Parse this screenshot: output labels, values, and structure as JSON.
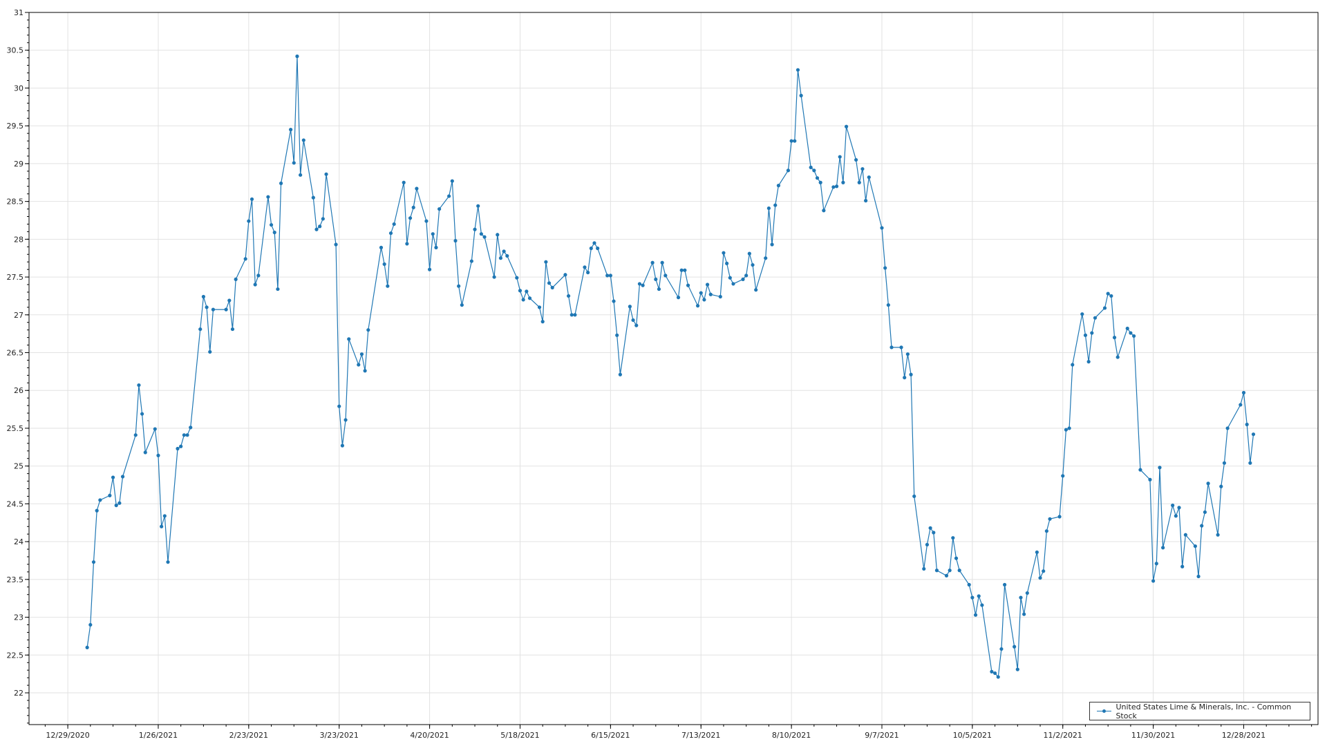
{
  "chart_data": {
    "type": "line",
    "title": "",
    "xlabel": "",
    "ylabel": "",
    "grid": true,
    "legend_position": "bottom-right",
    "xlim": [
      "12/17/2020",
      "1/20/2022"
    ],
    "ylim": [
      21.58,
      31
    ],
    "x_ticks": [
      "12/29/2020",
      "1/26/2021",
      "2/23/2021",
      "3/23/2021",
      "4/20/2021",
      "5/18/2021",
      "6/15/2021",
      "7/13/2021",
      "8/10/2021",
      "9/7/2021",
      "10/5/2021",
      "11/2/2021",
      "11/30/2021",
      "12/28/2021"
    ],
    "y_ticks": [
      "22",
      "22.5",
      "23",
      "23.5",
      "24",
      "24.5",
      "25",
      "25.5",
      "26",
      "26.5",
      "27",
      "27.5",
      "28",
      "28.5",
      "29",
      "29.5",
      "30",
      "30.5",
      "31"
    ],
    "series": [
      {
        "name": "United States Lime & Minerals, Inc. - Common Stock",
        "color": "#1f77b4",
        "x": [
          "1/4/2021",
          "1/5/2021",
          "1/6/2021",
          "1/7/2021",
          "1/8/2021",
          "1/11/2021",
          "1/12/2021",
          "1/13/2021",
          "1/14/2021",
          "1/15/2021",
          "1/19/2021",
          "1/20/2021",
          "1/21/2021",
          "1/22/2021",
          "1/25/2021",
          "1/26/2021",
          "1/27/2021",
          "1/28/2021",
          "1/29/2021",
          "2/1/2021",
          "2/2/2021",
          "2/3/2021",
          "2/4/2021",
          "2/5/2021",
          "2/8/2021",
          "2/9/2021",
          "2/10/2021",
          "2/11/2021",
          "2/12/2021",
          "2/16/2021",
          "2/17/2021",
          "2/18/2021",
          "2/19/2021",
          "2/22/2021",
          "2/23/2021",
          "2/24/2021",
          "2/25/2021",
          "2/26/2021",
          "3/1/2021",
          "3/2/2021",
          "3/3/2021",
          "3/4/2021",
          "3/5/2021",
          "3/8/2021",
          "3/9/2021",
          "3/10/2021",
          "3/11/2021",
          "3/12/2021",
          "3/15/2021",
          "3/16/2021",
          "3/17/2021",
          "3/18/2021",
          "3/19/2021",
          "3/22/2021",
          "3/23/2021",
          "3/24/2021",
          "3/25/2021",
          "3/26/2021",
          "3/29/2021",
          "3/30/2021",
          "3/31/2021",
          "4/1/2021",
          "4/5/2021",
          "4/6/2021",
          "4/7/2021",
          "4/8/2021",
          "4/9/2021",
          "4/12/2021",
          "4/13/2021",
          "4/14/2021",
          "4/15/2021",
          "4/16/2021",
          "4/19/2021",
          "4/20/2021",
          "4/21/2021",
          "4/22/2021",
          "4/23/2021",
          "4/26/2021",
          "4/27/2021",
          "4/28/2021",
          "4/29/2021",
          "4/30/2021",
          "5/3/2021",
          "5/4/2021",
          "5/5/2021",
          "5/6/2021",
          "5/7/2021",
          "5/10/2021",
          "5/11/2021",
          "5/12/2021",
          "5/13/2021",
          "5/14/2021",
          "5/17/2021",
          "5/18/2021",
          "5/19/2021",
          "5/20/2021",
          "5/21/2021",
          "5/24/2021",
          "5/25/2021",
          "5/26/2021",
          "5/27/2021",
          "5/28/2021",
          "6/1/2021",
          "6/2/2021",
          "6/3/2021",
          "6/4/2021",
          "6/7/2021",
          "6/8/2021",
          "6/9/2021",
          "6/10/2021",
          "6/11/2021",
          "6/14/2021",
          "6/15/2021",
          "6/16/2021",
          "6/17/2021",
          "6/18/2021",
          "6/21/2021",
          "6/22/2021",
          "6/23/2021",
          "6/24/2021",
          "6/25/2021",
          "6/28/2021",
          "6/29/2021",
          "6/30/2021",
          "7/1/2021",
          "7/2/2021",
          "7/6/2021",
          "7/7/2021",
          "7/8/2021",
          "7/9/2021",
          "7/12/2021",
          "7/13/2021",
          "7/14/2021",
          "7/15/2021",
          "7/16/2021",
          "7/19/2021",
          "7/20/2021",
          "7/21/2021",
          "7/22/2021",
          "7/23/2021",
          "7/26/2021",
          "7/27/2021",
          "7/28/2021",
          "7/29/2021",
          "7/30/2021",
          "8/2/2021",
          "8/3/2021",
          "8/4/2021",
          "8/5/2021",
          "8/6/2021",
          "8/9/2021",
          "8/10/2021",
          "8/11/2021",
          "8/12/2021",
          "8/13/2021",
          "8/16/2021",
          "8/17/2021",
          "8/18/2021",
          "8/19/2021",
          "8/20/2021",
          "8/23/2021",
          "8/24/2021",
          "8/25/2021",
          "8/26/2021",
          "8/27/2021",
          "8/30/2021",
          "8/31/2021",
          "9/1/2021",
          "9/2/2021",
          "9/3/2021",
          "9/7/2021",
          "9/8/2021",
          "9/9/2021",
          "9/10/2021",
          "9/13/2021",
          "9/14/2021",
          "9/15/2021",
          "9/16/2021",
          "9/17/2021",
          "9/20/2021",
          "9/21/2021",
          "9/22/2021",
          "9/23/2021",
          "9/24/2021",
          "9/27/2021",
          "9/28/2021",
          "9/29/2021",
          "9/30/2021",
          "10/1/2021",
          "10/4/2021",
          "10/5/2021",
          "10/6/2021",
          "10/7/2021",
          "10/8/2021",
          "10/11/2021",
          "10/12/2021",
          "10/13/2021",
          "10/14/2021",
          "10/15/2021",
          "10/18/2021",
          "10/19/2021",
          "10/20/2021",
          "10/21/2021",
          "10/22/2021",
          "10/25/2021",
          "10/26/2021",
          "10/27/2021",
          "10/28/2021",
          "10/29/2021",
          "11/1/2021",
          "11/2/2021",
          "11/3/2021",
          "11/4/2021",
          "11/5/2021",
          "11/8/2021",
          "11/9/2021",
          "11/10/2021",
          "11/11/2021",
          "11/12/2021",
          "11/15/2021",
          "11/16/2021",
          "11/17/2021",
          "11/18/2021",
          "11/19/2021",
          "11/22/2021",
          "11/23/2021",
          "11/24/2021",
          "11/26/2021",
          "11/29/2021",
          "11/30/2021",
          "12/1/2021",
          "12/2/2021",
          "12/3/2021",
          "12/6/2021",
          "12/7/2021",
          "12/8/2021",
          "12/9/2021",
          "12/10/2021",
          "12/13/2021",
          "12/14/2021",
          "12/15/2021",
          "12/16/2021",
          "12/17/2021",
          "12/20/2021",
          "12/21/2021",
          "12/22/2021",
          "12/23/2021",
          "12/27/2021",
          "12/28/2021",
          "12/29/2021",
          "12/30/2021",
          "12/31/2021"
        ],
        "y": [
          22.6,
          22.9,
          23.73,
          24.41,
          24.55,
          24.61,
          24.85,
          24.48,
          24.51,
          24.86,
          25.41,
          26.07,
          25.69,
          25.18,
          25.49,
          25.14,
          24.2,
          24.34,
          23.73,
          25.23,
          25.26,
          25.41,
          25.41,
          25.51,
          26.81,
          27.24,
          27.1,
          26.51,
          27.07,
          27.07,
          27.19,
          26.81,
          27.47,
          27.74,
          28.24,
          28.53,
          27.4,
          27.52,
          28.56,
          28.19,
          28.09,
          27.34,
          28.74,
          29.45,
          29.01,
          30.42,
          28.85,
          29.31,
          28.55,
          28.13,
          28.17,
          28.27,
          28.86,
          27.93,
          25.79,
          25.27,
          25.61,
          26.68,
          26.34,
          26.48,
          26.26,
          26.8,
          27.89,
          27.67,
          27.38,
          28.08,
          28.2,
          28.75,
          27.94,
          28.28,
          28.42,
          28.67,
          28.24,
          27.6,
          28.07,
          27.89,
          28.4,
          28.57,
          28.77,
          27.98,
          27.38,
          27.13,
          27.71,
          28.13,
          28.44,
          28.07,
          28.03,
          27.5,
          28.06,
          27.75,
          27.84,
          27.78,
          27.49,
          27.32,
          27.2,
          27.31,
          27.22,
          27.1,
          26.91,
          27.7,
          27.42,
          27.36,
          27.53,
          27.25,
          27.0,
          27.0,
          27.63,
          27.56,
          27.88,
          27.95,
          27.88,
          27.52,
          27.52,
          27.18,
          26.73,
          26.21,
          27.11,
          26.93,
          26.86,
          27.41,
          27.39,
          27.69,
          27.47,
          27.34,
          27.69,
          27.52,
          27.23,
          27.59,
          27.59,
          27.39,
          27.12,
          27.29,
          27.2,
          27.4,
          27.27,
          27.24,
          27.82,
          27.68,
          27.49,
          27.41,
          27.47,
          27.52,
          27.81,
          27.66,
          27.33,
          27.75,
          28.41,
          27.93,
          28.45,
          28.71,
          28.91,
          29.3,
          29.3,
          30.24,
          29.9,
          28.95,
          28.91,
          28.81,
          28.75,
          28.38,
          28.69,
          28.7,
          29.09,
          28.75,
          29.49,
          29.05,
          28.75,
          28.93,
          28.51,
          28.82,
          28.15,
          27.62,
          27.13,
          26.57,
          26.57,
          26.17,
          26.48,
          26.21,
          24.6,
          23.64,
          23.96,
          24.18,
          24.12,
          23.62,
          23.55,
          23.62,
          24.05,
          23.78,
          23.62,
          23.43,
          23.26,
          23.03,
          23.28,
          23.16,
          22.28,
          22.26,
          22.21,
          22.58,
          23.43,
          22.61,
          22.31,
          23.26,
          23.04,
          23.32,
          23.86,
          23.52,
          23.61,
          24.14,
          24.3,
          24.33,
          24.87,
          25.48,
          25.5,
          26.34,
          27.01,
          26.73,
          26.38,
          26.76,
          26.96,
          27.09,
          27.28,
          27.25,
          26.7,
          26.44,
          26.82,
          26.76,
          26.72,
          24.95,
          24.82,
          23.48,
          23.71,
          24.98,
          23.92,
          24.48,
          24.34,
          24.45,
          23.67,
          24.09,
          23.94,
          23.54,
          24.21,
          24.39,
          24.77,
          24.09,
          24.73,
          25.04,
          25.5,
          25.81,
          25.97,
          25.55,
          25.04,
          25.42
        ]
      }
    ]
  }
}
